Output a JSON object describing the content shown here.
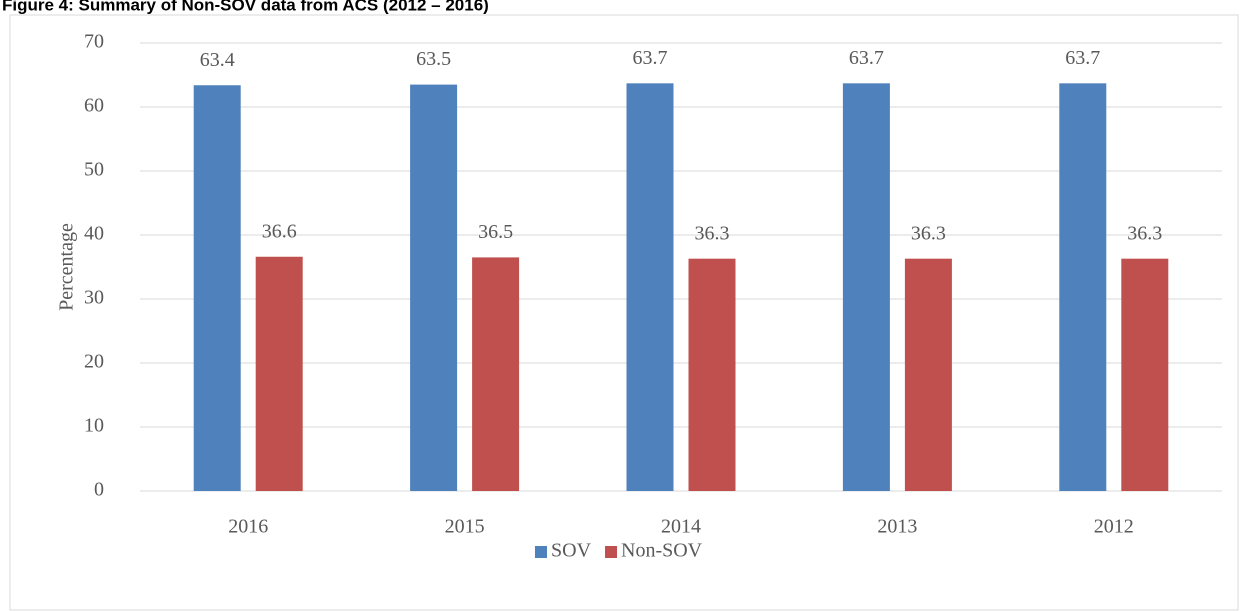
{
  "chart_data": {
    "type": "bar",
    "title": "Figure 4: Summary of Non-SOV data from ACS (2012 – 2016)",
    "y_label": "Percentage",
    "categories": [
      "2016",
      "2015",
      "2014",
      "2013",
      "2012"
    ],
    "series": [
      {
        "name": "SOV",
        "color": "#4f81bd",
        "values": [
          63.4,
          63.5,
          63.7,
          63.7,
          63.7
        ]
      },
      {
        "name": "Non-SOV",
        "color": "#c0504d",
        "values": [
          36.6,
          36.5,
          36.3,
          36.3,
          36.3
        ]
      }
    ],
    "ylim": [
      0,
      70
    ],
    "yticks": [
      0,
      10,
      20,
      30,
      40,
      50,
      60,
      70
    ],
    "grid": true,
    "legend": "bottom"
  }
}
